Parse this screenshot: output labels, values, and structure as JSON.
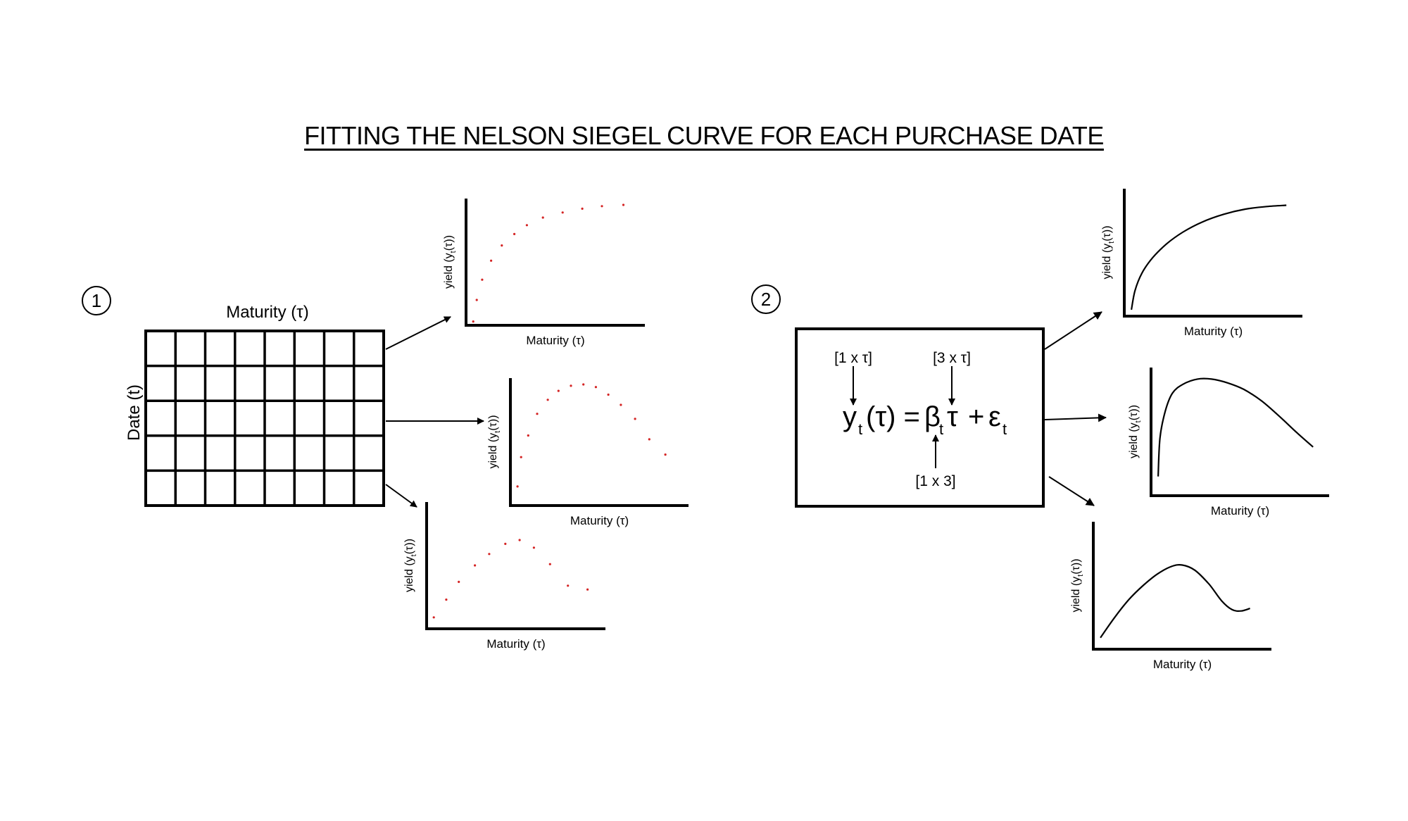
{
  "title": "FITTING THE NELSON SIEGEL CURVE FOR EACH PURCHASE DATE",
  "steps": {
    "step1": "1",
    "step2": "2"
  },
  "grid": {
    "col_label": "Maturity (τ)",
    "row_label": "Date (t)",
    "rows": 5,
    "cols": 8
  },
  "scatter_plots": [
    {
      "xlabel": "Maturity (τ)",
      "ylabel": "yield (y",
      "points": [
        [
          0.04,
          0.03
        ],
        [
          0.06,
          0.2
        ],
        [
          0.09,
          0.36
        ],
        [
          0.14,
          0.51
        ],
        [
          0.2,
          0.63
        ],
        [
          0.27,
          0.72
        ],
        [
          0.34,
          0.79
        ],
        [
          0.43,
          0.85
        ],
        [
          0.54,
          0.89
        ],
        [
          0.65,
          0.92
        ],
        [
          0.76,
          0.94
        ],
        [
          0.88,
          0.95
        ]
      ]
    },
    {
      "xlabel": "Maturity (τ)",
      "ylabel": "yield (y",
      "points": [
        [
          0.04,
          0.15
        ],
        [
          0.06,
          0.38
        ],
        [
          0.1,
          0.55
        ],
        [
          0.15,
          0.72
        ],
        [
          0.21,
          0.83
        ],
        [
          0.27,
          0.9
        ],
        [
          0.34,
          0.94
        ],
        [
          0.41,
          0.95
        ],
        [
          0.48,
          0.93
        ],
        [
          0.55,
          0.87
        ],
        [
          0.62,
          0.79
        ],
        [
          0.7,
          0.68
        ],
        [
          0.78,
          0.52
        ],
        [
          0.87,
          0.4
        ]
      ]
    },
    {
      "xlabel": "Maturity (τ)",
      "ylabel": "yield (y",
      "points": [
        [
          0.04,
          0.09
        ],
        [
          0.11,
          0.23
        ],
        [
          0.18,
          0.37
        ],
        [
          0.27,
          0.5
        ],
        [
          0.35,
          0.59
        ],
        [
          0.44,
          0.67
        ],
        [
          0.52,
          0.7
        ],
        [
          0.6,
          0.64
        ],
        [
          0.69,
          0.51
        ],
        [
          0.79,
          0.34
        ],
        [
          0.9,
          0.31
        ]
      ]
    }
  ],
  "equation": {
    "top_left": "[1 x τ]",
    "top_right": "[3 x τ]",
    "bottom": "[1 x 3]",
    "y": "y",
    "sub_t": "t",
    "tau_paren": "(τ) =",
    "beta": "β",
    "tau": "τ",
    "plus": "+",
    "eps": "ε"
  },
  "curve_plots": [
    {
      "xlabel": "Maturity (τ)",
      "ylabel": "yield (y",
      "points": [
        [
          0.04,
          0.05
        ],
        [
          0.06,
          0.2
        ],
        [
          0.1,
          0.34
        ],
        [
          0.16,
          0.46
        ],
        [
          0.24,
          0.57
        ],
        [
          0.33,
          0.66
        ],
        [
          0.44,
          0.74
        ],
        [
          0.56,
          0.8
        ],
        [
          0.68,
          0.84
        ],
        [
          0.8,
          0.86
        ],
        [
          0.91,
          0.87
        ]
      ]
    },
    {
      "xlabel": "Maturity (τ)",
      "ylabel": "yield (y",
      "points": [
        [
          0.04,
          0.15
        ],
        [
          0.05,
          0.45
        ],
        [
          0.08,
          0.66
        ],
        [
          0.12,
          0.8
        ],
        [
          0.18,
          0.87
        ],
        [
          0.26,
          0.91
        ],
        [
          0.34,
          0.91
        ],
        [
          0.43,
          0.88
        ],
        [
          0.52,
          0.83
        ],
        [
          0.62,
          0.74
        ],
        [
          0.72,
          0.62
        ],
        [
          0.82,
          0.49
        ],
        [
          0.91,
          0.38
        ]
      ]
    },
    {
      "xlabel": "Maturity (τ)",
      "ylabel": "yield (y",
      "points": [
        [
          0.04,
          0.09
        ],
        [
          0.12,
          0.25
        ],
        [
          0.2,
          0.39
        ],
        [
          0.28,
          0.5
        ],
        [
          0.36,
          0.59
        ],
        [
          0.44,
          0.65
        ],
        [
          0.5,
          0.66
        ],
        [
          0.57,
          0.62
        ],
        [
          0.65,
          0.51
        ],
        [
          0.72,
          0.38
        ],
        [
          0.78,
          0.31
        ],
        [
          0.83,
          0.3
        ],
        [
          0.88,
          0.32
        ]
      ]
    }
  ]
}
